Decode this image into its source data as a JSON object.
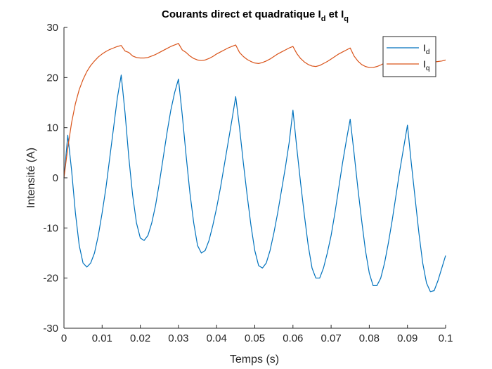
{
  "chart_data": {
    "type": "line",
    "title": {
      "main": "Courants direct et quadratique I",
      "sub1": "d",
      "mid": " et I",
      "sub2": "q"
    },
    "xlabel": "Temps (s)",
    "ylabel": "Intensité (A)",
    "xlim": [
      0,
      0.1
    ],
    "ylim": [
      -30,
      30
    ],
    "xticks": [
      0,
      0.01,
      0.02,
      0.03,
      0.04,
      0.05,
      0.06,
      0.07,
      0.08,
      0.09,
      0.1
    ],
    "xtick_labels": [
      "0",
      "0.01",
      "0.02",
      "0.03",
      "0.04",
      "0.05",
      "0.06",
      "0.07",
      "0.08",
      "0.09",
      "0.1"
    ],
    "yticks": [
      -30,
      -20,
      -10,
      0,
      10,
      20,
      30
    ],
    "ytick_labels": [
      "-30",
      "-20",
      "-10",
      "0",
      "10",
      "20",
      "30"
    ],
    "grid": false,
    "legend_position": "top-right",
    "series": [
      {
        "name": "I",
        "name_sub": "d",
        "color": "#0072BD",
        "points": [
          [
            0,
            0
          ],
          [
            0.001,
            8.5
          ],
          [
            0.002,
            1.5
          ],
          [
            0.003,
            -7
          ],
          [
            0.004,
            -13.5
          ],
          [
            0.005,
            -17
          ],
          [
            0.006,
            -17.8
          ],
          [
            0.007,
            -17
          ],
          [
            0.008,
            -15
          ],
          [
            0.009,
            -11.5
          ],
          [
            0.01,
            -7
          ],
          [
            0.011,
            -2
          ],
          [
            0.012,
            4
          ],
          [
            0.013,
            10
          ],
          [
            0.014,
            16
          ],
          [
            0.015,
            20.5
          ],
          [
            0.016,
            13
          ],
          [
            0.017,
            4
          ],
          [
            0.018,
            -3.5
          ],
          [
            0.019,
            -9
          ],
          [
            0.02,
            -12
          ],
          [
            0.021,
            -12.5
          ],
          [
            0.022,
            -11.5
          ],
          [
            0.023,
            -9
          ],
          [
            0.024,
            -5.5
          ],
          [
            0.025,
            -1
          ],
          [
            0.026,
            4
          ],
          [
            0.027,
            9
          ],
          [
            0.028,
            13.5
          ],
          [
            0.029,
            17
          ],
          [
            0.03,
            19.7
          ],
          [
            0.031,
            12.5
          ],
          [
            0.032,
            4.5
          ],
          [
            0.033,
            -3
          ],
          [
            0.034,
            -9
          ],
          [
            0.035,
            -13.5
          ],
          [
            0.036,
            -15
          ],
          [
            0.037,
            -14.5
          ],
          [
            0.038,
            -12.5
          ],
          [
            0.039,
            -9.5
          ],
          [
            0.04,
            -6
          ],
          [
            0.041,
            -2
          ],
          [
            0.042,
            2.5
          ],
          [
            0.043,
            7
          ],
          [
            0.044,
            11.5
          ],
          [
            0.045,
            16.2
          ],
          [
            0.046,
            10
          ],
          [
            0.047,
            3
          ],
          [
            0.048,
            -3.5
          ],
          [
            0.049,
            -9.5
          ],
          [
            0.05,
            -14.5
          ],
          [
            0.051,
            -17.5
          ],
          [
            0.052,
            -18
          ],
          [
            0.053,
            -17
          ],
          [
            0.054,
            -14.5
          ],
          [
            0.055,
            -11
          ],
          [
            0.056,
            -7
          ],
          [
            0.057,
            -2.5
          ],
          [
            0.058,
            2
          ],
          [
            0.059,
            7
          ],
          [
            0.06,
            13.5
          ],
          [
            0.061,
            6
          ],
          [
            0.062,
            -1
          ],
          [
            0.063,
            -7.5
          ],
          [
            0.064,
            -13.5
          ],
          [
            0.065,
            -18
          ],
          [
            0.066,
            -20
          ],
          [
            0.067,
            -20
          ],
          [
            0.068,
            -18
          ],
          [
            0.069,
            -15
          ],
          [
            0.07,
            -11.5
          ],
          [
            0.071,
            -7
          ],
          [
            0.072,
            -2
          ],
          [
            0.073,
            3
          ],
          [
            0.074,
            7.5
          ],
          [
            0.075,
            11.7
          ],
          [
            0.076,
            5
          ],
          [
            0.077,
            -2
          ],
          [
            0.078,
            -8.5
          ],
          [
            0.079,
            -14.5
          ],
          [
            0.08,
            -19
          ],
          [
            0.081,
            -21.5
          ],
          [
            0.082,
            -21.5
          ],
          [
            0.083,
            -20
          ],
          [
            0.084,
            -17
          ],
          [
            0.085,
            -13
          ],
          [
            0.086,
            -8.5
          ],
          [
            0.087,
            -3.5
          ],
          [
            0.088,
            1.5
          ],
          [
            0.089,
            6
          ],
          [
            0.09,
            10.5
          ],
          [
            0.091,
            3
          ],
          [
            0.092,
            -4
          ],
          [
            0.093,
            -11
          ],
          [
            0.094,
            -17
          ],
          [
            0.095,
            -21
          ],
          [
            0.096,
            -22.7
          ],
          [
            0.097,
            -22.5
          ],
          [
            0.098,
            -20.5
          ],
          [
            0.099,
            -18
          ],
          [
            0.1,
            -15.5
          ]
        ]
      },
      {
        "name": "I",
        "name_sub": "q",
        "color": "#D95319",
        "points": [
          [
            0,
            0
          ],
          [
            0.0005,
            3
          ],
          [
            0.001,
            6
          ],
          [
            0.0015,
            8.5
          ],
          [
            0.002,
            11
          ],
          [
            0.003,
            14.8
          ],
          [
            0.004,
            17.6
          ],
          [
            0.005,
            19.6
          ],
          [
            0.006,
            21.2
          ],
          [
            0.007,
            22.4
          ],
          [
            0.008,
            23.3
          ],
          [
            0.009,
            24.1
          ],
          [
            0.01,
            24.7
          ],
          [
            0.011,
            25.2
          ],
          [
            0.012,
            25.6
          ],
          [
            0.013,
            25.9
          ],
          [
            0.014,
            26.2
          ],
          [
            0.015,
            26.4
          ],
          [
            0.016,
            25.3
          ],
          [
            0.017,
            25
          ],
          [
            0.018,
            24.3
          ],
          [
            0.019,
            24.0
          ],
          [
            0.02,
            23.9
          ],
          [
            0.021,
            23.9
          ],
          [
            0.022,
            24.0
          ],
          [
            0.023,
            24.3
          ],
          [
            0.024,
            24.6
          ],
          [
            0.025,
            25.0
          ],
          [
            0.026,
            25.4
          ],
          [
            0.027,
            25.8
          ],
          [
            0.028,
            26.2
          ],
          [
            0.029,
            26.5
          ],
          [
            0.03,
            26.8
          ],
          [
            0.031,
            25.5
          ],
          [
            0.032,
            25
          ],
          [
            0.033,
            24.3
          ],
          [
            0.034,
            23.8
          ],
          [
            0.035,
            23.5
          ],
          [
            0.036,
            23.4
          ],
          [
            0.037,
            23.5
          ],
          [
            0.038,
            23.8
          ],
          [
            0.039,
            24.2
          ],
          [
            0.04,
            24.7
          ],
          [
            0.041,
            25.1
          ],
          [
            0.042,
            25.5
          ],
          [
            0.043,
            25.9
          ],
          [
            0.044,
            26.2
          ],
          [
            0.045,
            26.5
          ],
          [
            0.046,
            25.0
          ],
          [
            0.047,
            24.2
          ],
          [
            0.048,
            23.6
          ],
          [
            0.049,
            23.2
          ],
          [
            0.05,
            22.9
          ],
          [
            0.051,
            22.8
          ],
          [
            0.052,
            23.0
          ],
          [
            0.053,
            23.3
          ],
          [
            0.054,
            23.7
          ],
          [
            0.055,
            24.2
          ],
          [
            0.056,
            24.7
          ],
          [
            0.057,
            25.1
          ],
          [
            0.058,
            25.5
          ],
          [
            0.059,
            25.9
          ],
          [
            0.06,
            26.2
          ],
          [
            0.061,
            24.8
          ],
          [
            0.062,
            23.8
          ],
          [
            0.063,
            23.1
          ],
          [
            0.064,
            22.6
          ],
          [
            0.065,
            22.3
          ],
          [
            0.066,
            22.2
          ],
          [
            0.067,
            22.4
          ],
          [
            0.068,
            22.8
          ],
          [
            0.069,
            23.2
          ],
          [
            0.07,
            23.7
          ],
          [
            0.071,
            24.2
          ],
          [
            0.072,
            24.7
          ],
          [
            0.073,
            25.1
          ],
          [
            0.074,
            25.5
          ],
          [
            0.075,
            25.9
          ],
          [
            0.076,
            24.3
          ],
          [
            0.077,
            23.3
          ],
          [
            0.078,
            22.6
          ],
          [
            0.079,
            22.2
          ],
          [
            0.08,
            22.0
          ],
          [
            0.081,
            22.0
          ],
          [
            0.082,
            22.2
          ],
          [
            0.083,
            22.5
          ],
          [
            0.084,
            22.9
          ],
          [
            0.085,
            23.2
          ],
          [
            0.086,
            23.3
          ],
          [
            0.087,
            23.2
          ],
          [
            0.088,
            23.1
          ],
          [
            0.089,
            23.0
          ],
          [
            0.09,
            22.9
          ],
          [
            0.091,
            22.8
          ],
          [
            0.092,
            22.8
          ],
          [
            0.093,
            22.9
          ],
          [
            0.094,
            23.0
          ],
          [
            0.095,
            23.0
          ],
          [
            0.096,
            23.1
          ],
          [
            0.097,
            23.1
          ],
          [
            0.098,
            23.2
          ],
          [
            0.099,
            23.3
          ],
          [
            0.1,
            23.5
          ]
        ]
      }
    ]
  }
}
